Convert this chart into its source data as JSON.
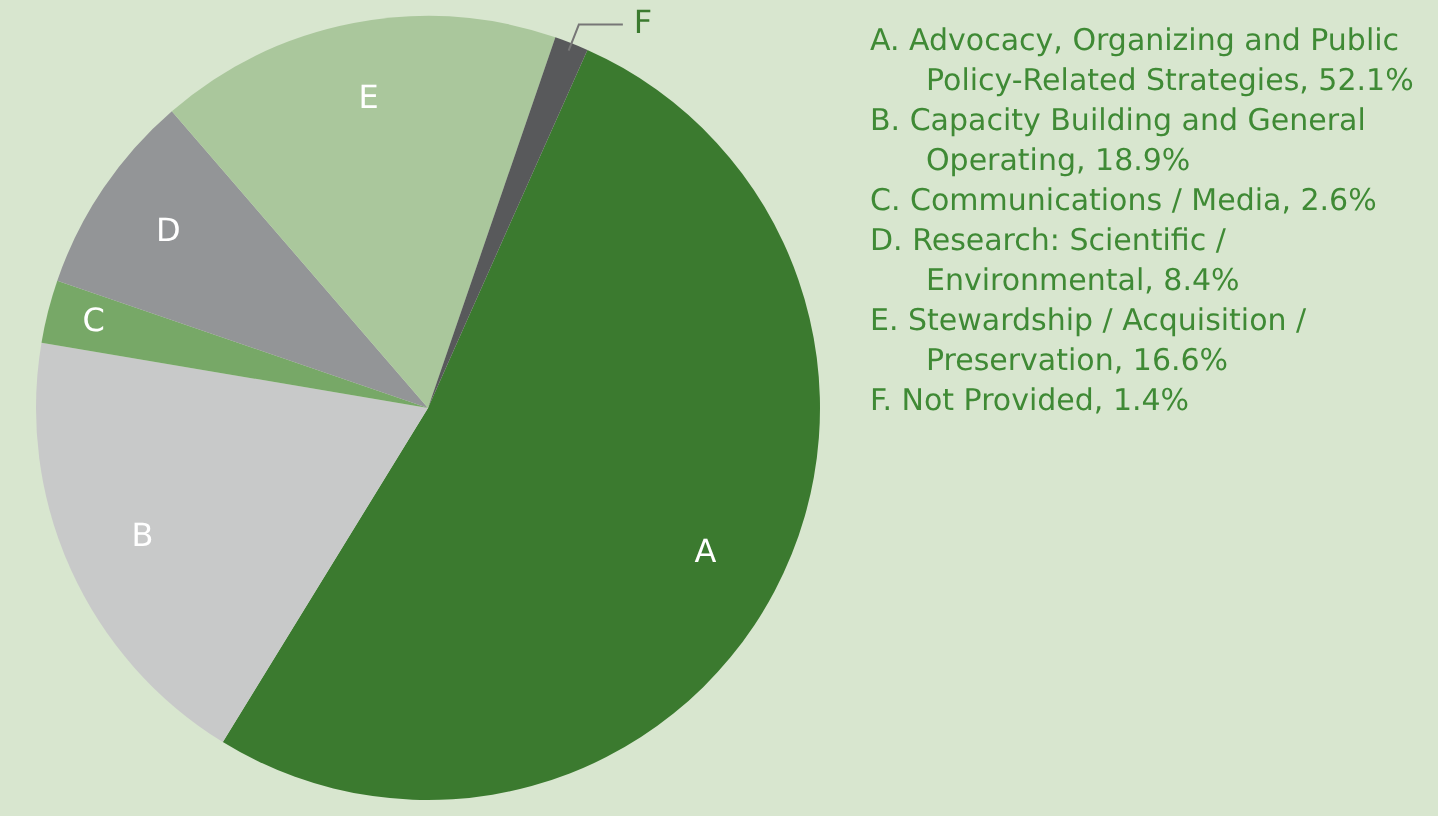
{
  "chart_data": {
    "type": "pie",
    "categories": [
      "A",
      "B",
      "C",
      "D",
      "E",
      "F"
    ],
    "values": [
      52.1,
      18.9,
      2.6,
      8.4,
      16.6,
      1.4
    ],
    "colors": [
      "#3b7a2f",
      "#c8c9c9",
      "#77a867",
      "#939597",
      "#aac79c",
      "#58595b"
    ],
    "annotations": [
      "A. Advocacy, Organizing and Public Policy-Related Strategies, 52.1%",
      "B. Capacity Building and General Operating, 18.9%",
      "C. Communications / Media, 2.6%",
      "D. Research: Scientific / Environmental, 8.4%",
      "E. Stewardship / Acquisition / Preservation, 16.6%",
      "F. Not Provided, 1.4%"
    ]
  }
}
